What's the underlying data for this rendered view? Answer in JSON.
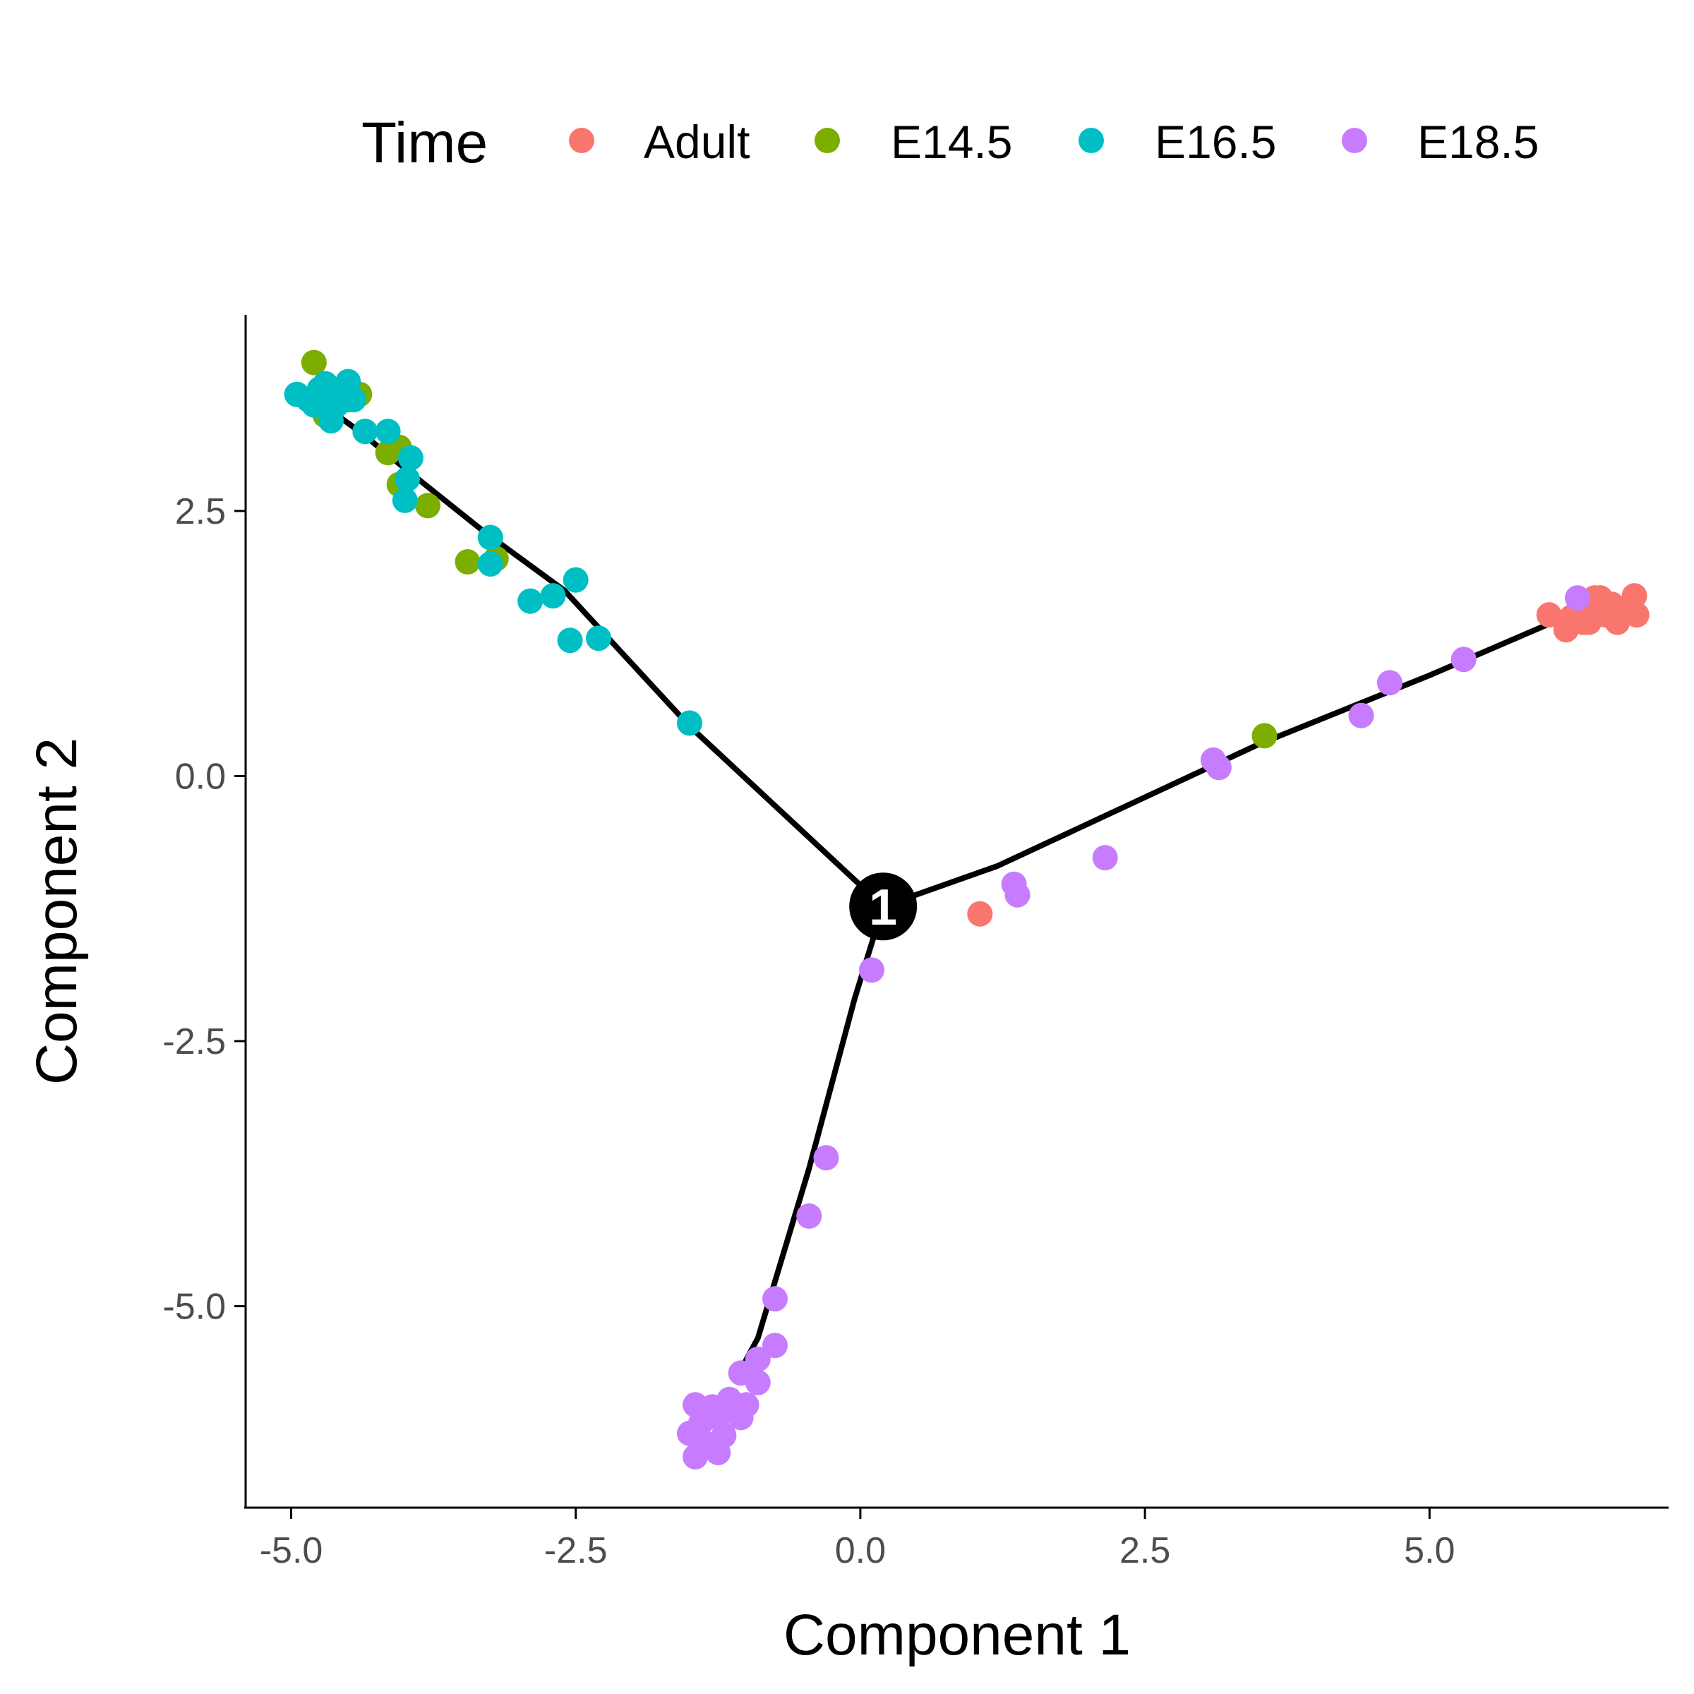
{
  "chart_data": {
    "type": "scatter",
    "title": "",
    "xlabel": "Component 1",
    "ylabel": "Component 2",
    "xlim": [
      -5.4,
      7.1
    ],
    "ylim": [
      -6.9,
      4.35
    ],
    "xticks": [
      -5.0,
      -2.5,
      0.0,
      2.5,
      5.0
    ],
    "xtick_labels": [
      "-5.0",
      "-2.5",
      "0.0",
      "2.5",
      "5.0"
    ],
    "yticks": [
      -5.0,
      -2.5,
      0.0,
      2.5
    ],
    "ytick_labels": [
      "-5.0",
      "-2.5",
      "0.0",
      "2.5"
    ],
    "grid": false,
    "legend": {
      "title": "Time",
      "position": "top",
      "entries": [
        {
          "label": "Adult",
          "color": "#F8766D"
        },
        {
          "label": "E14.5",
          "color": "#7CAE00"
        },
        {
          "label": "E16.5",
          "color": "#00BFC4"
        },
        {
          "label": "E18.5",
          "color": "#C77CFF"
        }
      ]
    },
    "trajectory": {
      "branch_point": {
        "label": "1",
        "x": 0.2,
        "y": -1.23
      },
      "branches": [
        [
          [
            -4.85,
            3.6
          ],
          [
            -4.4,
            3.25
          ],
          [
            -4.0,
            2.9
          ],
          [
            -3.3,
            2.3
          ],
          [
            -2.6,
            1.75
          ],
          [
            -1.5,
            0.47
          ],
          [
            0.2,
            -1.23
          ]
        ],
        [
          [
            0.2,
            -1.23
          ],
          [
            1.2,
            -0.85
          ],
          [
            2.0,
            -0.45
          ],
          [
            3.5,
            0.3
          ],
          [
            5.0,
            0.95
          ],
          [
            6.3,
            1.55
          ]
        ],
        [
          [
            0.2,
            -1.23
          ],
          [
            -0.05,
            -2.1
          ],
          [
            -0.45,
            -3.7
          ],
          [
            -0.9,
            -5.3
          ],
          [
            -1.05,
            -5.6
          ]
        ]
      ]
    },
    "series": [
      {
        "name": "Adult",
        "color": "#F8766D",
        "points": [
          [
            1.05,
            -1.3
          ],
          [
            6.05,
            1.52
          ],
          [
            6.2,
            1.38
          ],
          [
            6.25,
            1.5
          ],
          [
            6.3,
            1.55
          ],
          [
            6.35,
            1.62
          ],
          [
            6.4,
            1.45
          ],
          [
            6.45,
            1.58
          ],
          [
            6.5,
            1.68
          ],
          [
            6.55,
            1.52
          ],
          [
            6.6,
            1.62
          ],
          [
            6.65,
            1.45
          ],
          [
            6.7,
            1.58
          ],
          [
            6.75,
            1.55
          ],
          [
            6.8,
            1.7
          ],
          [
            6.82,
            1.52
          ],
          [
            6.45,
            1.68
          ],
          [
            6.35,
            1.45
          ]
        ]
      },
      {
        "name": "E14.5",
        "color": "#7CAE00",
        "points": [
          [
            -4.8,
            3.9
          ],
          [
            -4.75,
            3.55
          ],
          [
            -4.7,
            3.4
          ],
          [
            -4.65,
            3.5
          ],
          [
            -4.5,
            3.55
          ],
          [
            -4.4,
            3.6
          ],
          [
            -4.15,
            3.05
          ],
          [
            -4.05,
            3.1
          ],
          [
            -4.05,
            2.75
          ],
          [
            -3.8,
            2.55
          ],
          [
            -3.45,
            2.02
          ],
          [
            -3.2,
            2.05
          ],
          [
            3.55,
            0.38
          ]
        ]
      },
      {
        "name": "E16.5",
        "color": "#00BFC4",
        "points": [
          [
            -4.95,
            3.6
          ],
          [
            -4.85,
            3.55
          ],
          [
            -4.8,
            3.5
          ],
          [
            -4.75,
            3.65
          ],
          [
            -4.7,
            3.7
          ],
          [
            -4.65,
            3.35
          ],
          [
            -4.6,
            3.5
          ],
          [
            -4.55,
            3.6
          ],
          [
            -4.5,
            3.72
          ],
          [
            -4.45,
            3.55
          ],
          [
            -4.35,
            3.25
          ],
          [
            -4.15,
            3.25
          ],
          [
            -3.95,
            3.0
          ],
          [
            -3.98,
            2.8
          ],
          [
            -4.0,
            2.6
          ],
          [
            -3.25,
            2.25
          ],
          [
            -3.25,
            2.0
          ],
          [
            -2.9,
            1.65
          ],
          [
            -2.7,
            1.7
          ],
          [
            -2.5,
            1.85
          ],
          [
            -2.55,
            1.28
          ],
          [
            -2.3,
            1.3
          ],
          [
            -1.5,
            0.5
          ]
        ]
      },
      {
        "name": "E18.5",
        "color": "#C77CFF",
        "points": [
          [
            0.1,
            -1.83
          ],
          [
            1.35,
            -1.02
          ],
          [
            1.38,
            -1.12
          ],
          [
            2.15,
            -0.77
          ],
          [
            3.1,
            0.15
          ],
          [
            3.15,
            0.08
          ],
          [
            4.4,
            0.57
          ],
          [
            4.65,
            0.88
          ],
          [
            5.3,
            1.1
          ],
          [
            6.3,
            1.68
          ],
          [
            -0.3,
            -3.6
          ],
          [
            -0.45,
            -4.15
          ],
          [
            -0.75,
            -4.93
          ],
          [
            -0.75,
            -5.37
          ],
          [
            -0.9,
            -5.5
          ],
          [
            -1.05,
            -5.63
          ],
          [
            -0.9,
            -5.72
          ],
          [
            -1.0,
            -5.93
          ],
          [
            -1.15,
            -5.88
          ],
          [
            -1.3,
            -5.95
          ],
          [
            -1.45,
            -5.93
          ],
          [
            -1.25,
            -6.05
          ],
          [
            -1.4,
            -6.1
          ],
          [
            -1.05,
            -6.05
          ],
          [
            -1.5,
            -6.2
          ],
          [
            -1.35,
            -6.3
          ],
          [
            -1.2,
            -6.22
          ],
          [
            -1.45,
            -6.42
          ],
          [
            -1.25,
            -6.38
          ]
        ]
      }
    ]
  }
}
